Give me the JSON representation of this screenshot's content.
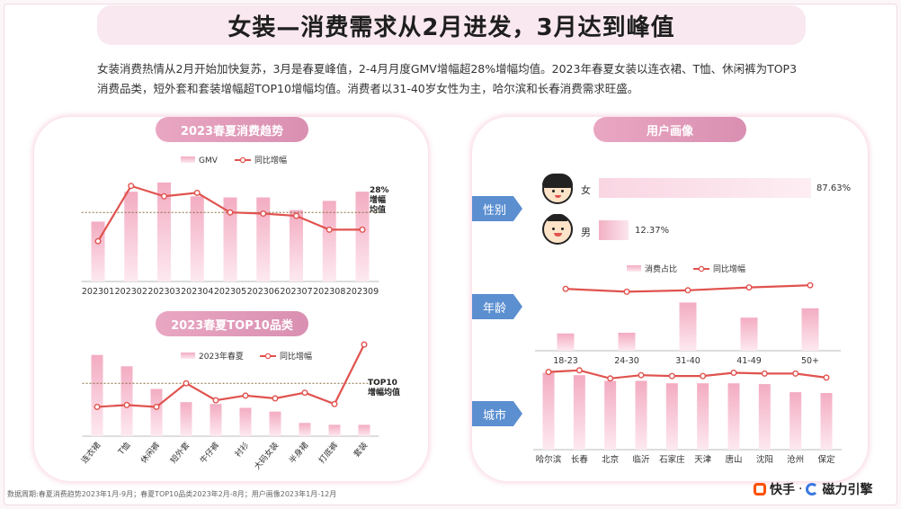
{
  "title": "女装—消费需求从2月进发，3月达到峰值",
  "description": "女装消费热情从2月开始加快复苏，3月是春夏峰值，2-4月月度GMV增幅超28%增幅均值。2023年春夏女装以连衣裙、T恤、休闲裤为TOP3消费品类，短外套和套装增幅超TOP10增幅均值。消费者以31-40岁女性为主，哈尔滨和长春消费需求旺盛。",
  "footer_note": "数据周期:春夏消费趋势2023年1月-9月；春夏TOP10品类2023年2月-8月；用户画像2023年1月-12月",
  "logos": {
    "kuaishou": "快手",
    "cili": "磁力引擎",
    "sep": "·"
  },
  "colors": {
    "bar_top": "#f3b0c4",
    "bar_bottom": "#fbe6ee",
    "line": "#e0534f",
    "tag": "#5b8fd0"
  },
  "chart_data": [
    {
      "type": "bar",
      "title": "2023春夏消费趋势",
      "categories": [
        "202301",
        "202302",
        "202303",
        "202304",
        "202305",
        "202306",
        "202307",
        "202308",
        "202309"
      ],
      "series": [
        {
          "name": "GMV",
          "values": [
            52,
            78,
            86,
            74,
            73,
            73,
            62,
            70,
            78
          ]
        },
        {
          "name": "同比增幅",
          "values": [
            35,
            83,
            74,
            77,
            60,
            59,
            57,
            45,
            45
          ]
        }
      ],
      "reference": {
        "label1": "28%",
        "label2": "增幅",
        "label3": "均值",
        "value": 60
      },
      "ylim": [
        0,
        100
      ]
    },
    {
      "type": "bar",
      "title": "2023春夏TOP10品类",
      "categories": [
        "连衣裙",
        "T恤",
        "休闲裤",
        "短外套",
        "牛仔裤",
        "衬衫",
        "大码女装",
        "半身裙",
        "打底裤",
        "套装"
      ],
      "series": [
        {
          "name": "2023年春夏",
          "values": [
            86,
            74,
            50,
            36,
            34,
            30,
            26,
            14,
            12,
            12
          ]
        },
        {
          "name": "同比增幅",
          "values": [
            31,
            33,
            31,
            56,
            38,
            43,
            40,
            46,
            34,
            97
          ]
        }
      ],
      "reference": {
        "label1": "TOP10",
        "label2": "增幅均值",
        "value": 56
      },
      "ylim": [
        0,
        100
      ]
    },
    {
      "type": "bar",
      "title": "用户画像",
      "section": "性别",
      "categories": [
        "女",
        "男"
      ],
      "values": [
        87.63,
        12.37
      ],
      "value_labels": [
        "87.63%",
        "12.37%"
      ]
    },
    {
      "type": "bar",
      "section": "年龄",
      "categories": [
        "18-23",
        "24-30",
        "31-40",
        "41-49",
        "50+"
      ],
      "series": [
        {
          "name": "消费占比",
          "values": [
            24,
            25,
            67,
            46,
            59
          ]
        },
        {
          "name": "同比增幅",
          "values": [
            86,
            82,
            84,
            88,
            91
          ]
        }
      ],
      "ylim": [
        0,
        100
      ]
    },
    {
      "type": "bar",
      "section": "城市",
      "categories": [
        "哈尔滨",
        "长春",
        "北京",
        "临沂",
        "石家庄",
        "天津",
        "唐山",
        "沈阳",
        "沧州",
        "保定"
      ],
      "series": [
        {
          "name": "消费占比",
          "values": [
            95,
            92,
            85,
            85,
            82,
            82,
            82,
            81,
            71,
            70
          ]
        },
        {
          "name": "同比增幅",
          "values": [
            96,
            98,
            88,
            92,
            91,
            91,
            95,
            94,
            94,
            89
          ]
        }
      ],
      "ylim": [
        0,
        100
      ]
    }
  ]
}
